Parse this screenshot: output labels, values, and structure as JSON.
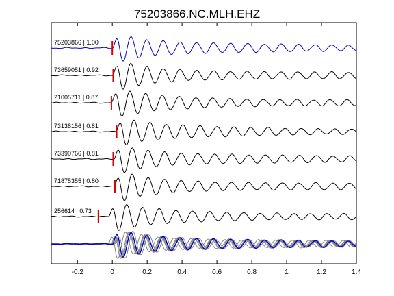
{
  "chart_data": {
    "type": "line",
    "title": "75203866.NC.MLH.EHZ",
    "xlabel": "",
    "ylabel": "",
    "xlim": [
      -0.35,
      1.4
    ],
    "x_ticks": [
      {
        "value": -0.2,
        "label": "-0.2"
      },
      {
        "value": 0,
        "label": "0"
      },
      {
        "value": 0.2,
        "label": "0.2"
      },
      {
        "value": 0.4,
        "label": "0.4"
      },
      {
        "value": 0.6,
        "label": "0.6"
      },
      {
        "value": 0.8,
        "label": "0.8"
      },
      {
        "value": 1.0,
        "label": "1"
      },
      {
        "value": 1.2,
        "label": "1.2"
      },
      {
        "value": 1.4,
        "label": "1.4"
      }
    ],
    "grid": false,
    "legend": "none",
    "colors": {
      "reference": "#0000cc",
      "trace": "#000000",
      "pick": "#dd0000",
      "stack": "#808080"
    },
    "traces": [
      {
        "name": "75203866",
        "correlation": "1.00",
        "pick_time": 0.0,
        "shift": 0.0,
        "reference": true
      },
      {
        "name": "73659051",
        "correlation": "0.92",
        "pick_time": 0.005,
        "shift": 0.0
      },
      {
        "name": "21005711",
        "correlation": "0.87",
        "pick_time": -0.005,
        "shift": -0.005
      },
      {
        "name": "73138156",
        "correlation": "0.81",
        "pick_time": 0.025,
        "shift": 0.02
      },
      {
        "name": "73390766",
        "correlation": "0.81",
        "pick_time": 0.005,
        "shift": 0.01
      },
      {
        "name": "71875355",
        "correlation": "0.80",
        "pick_time": 0.015,
        "shift": 0.01
      },
      {
        "name": "256614",
        "correlation": "0.73",
        "pick_time": -0.08,
        "shift": -0.02
      }
    ],
    "stack": {
      "overlay_count": 7
    }
  }
}
